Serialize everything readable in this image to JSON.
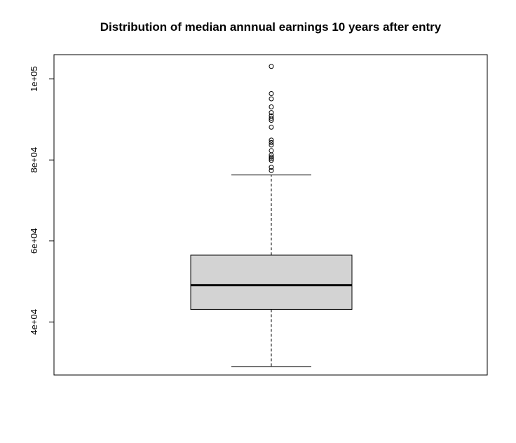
{
  "chart_data": {
    "type": "boxplot",
    "title": "Distribution of median annnual earnings 10 years after entry",
    "xlabel": "",
    "ylabel": "",
    "ylim": [
      26900,
      106000
    ],
    "yticks": [
      {
        "value": 40000,
        "label": "4e+04"
      },
      {
        "value": 60000,
        "label": "6e+04"
      },
      {
        "value": 80000,
        "label": "8e+04"
      },
      {
        "value": 100000,
        "label": "1e+05"
      }
    ],
    "box": {
      "whisker_low": 29000,
      "q1": 43100,
      "median": 49100,
      "q3": 56500,
      "whisker_high": 76300
    },
    "outliers": [
      77400,
      78200,
      79900,
      80300,
      80700,
      81200,
      82300,
      83700,
      84300,
      84900,
      88100,
      89800,
      90300,
      90900,
      91700,
      93100,
      95100,
      96400,
      103100
    ],
    "colors": {
      "box_fill": "#d3d3d3",
      "stroke": "#000000"
    }
  }
}
